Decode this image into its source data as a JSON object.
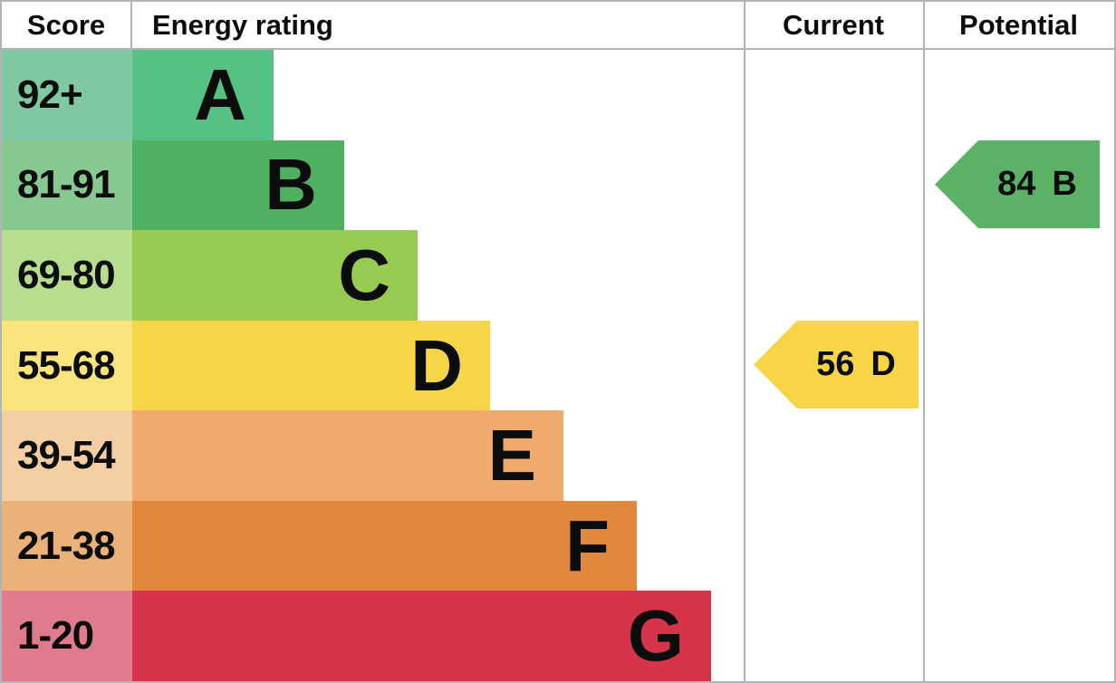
{
  "headers": {
    "score": "Score",
    "energy_rating": "Energy rating",
    "current": "Current",
    "potential": "Potential"
  },
  "bands": [
    {
      "letter": "A",
      "score": "92+",
      "bar_color": "#55c284",
      "cell_color": "#80c8a1"
    },
    {
      "letter": "B",
      "score": "81-91",
      "bar_color": "#4fb061",
      "cell_color": "#86c890"
    },
    {
      "letter": "C",
      "score": "69-80",
      "bar_color": "#98cb52",
      "cell_color": "#b9dd8e"
    },
    {
      "letter": "D",
      "score": "55-68",
      "bar_color": "#f7d548",
      "cell_color": "#fae47b"
    },
    {
      "letter": "E",
      "score": "39-54",
      "bar_color": "#f0aa6b",
      "cell_color": "#f3cfa3"
    },
    {
      "letter": "F",
      "score": "21-38",
      "bar_color": "#e1883c",
      "cell_color": "#eab179"
    },
    {
      "letter": "G",
      "score": "1-20",
      "bar_color": "#d5344a",
      "cell_color": "#e07b8d"
    }
  ],
  "current": {
    "score": "56",
    "letter": "D",
    "color": "#f8d546"
  },
  "potential": {
    "score": "84",
    "letter": "B",
    "color": "#5bb165"
  },
  "colors": {
    "grid_line": "#b1b4b6",
    "text": "#0b0c0c",
    "background": "#ffffff"
  },
  "chart_data": {
    "type": "bar",
    "title": "Energy rating",
    "column_headers": [
      "Score",
      "Energy rating",
      "Current",
      "Potential"
    ],
    "categories": [
      "A",
      "B",
      "C",
      "D",
      "E",
      "F",
      "G"
    ],
    "score_ranges": [
      "92+",
      "81-91",
      "69-80",
      "55-68",
      "39-54",
      "21-38",
      "1-20"
    ],
    "bar_relative_lengths": [
      1,
      2,
      3,
      4,
      5,
      6,
      7
    ],
    "annotations": [
      {
        "label": "Current",
        "value": 56,
        "rating": "D",
        "band_row": "D"
      },
      {
        "label": "Potential",
        "value": 84,
        "rating": "B",
        "band_row": "B"
      }
    ],
    "legend_position": "none",
    "grid": false
  }
}
